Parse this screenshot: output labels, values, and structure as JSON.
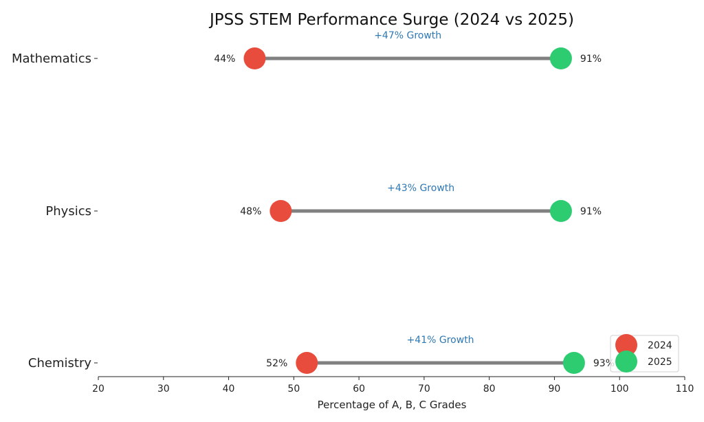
{
  "chart_data": {
    "type": "dumbbell",
    "title": "JPSS STEM Performance Surge (2024 vs 2025)",
    "xlabel": "Percentage of A, B, C Grades",
    "ylabel": "",
    "xlim": [
      20,
      110
    ],
    "xticks": [
      20,
      30,
      40,
      50,
      60,
      70,
      80,
      90,
      100,
      110
    ],
    "grid": false,
    "categories": [
      "Mathematics",
      "Physics",
      "Chemistry"
    ],
    "series": [
      {
        "name": "2024",
        "color": "#e74c3c",
        "values": [
          44,
          48,
          52
        ]
      },
      {
        "name": "2025",
        "color": "#2ecc71",
        "values": [
          91,
          91,
          93
        ]
      }
    ],
    "value_labels_2024": [
      "44%",
      "48%",
      "52%"
    ],
    "value_labels_2025": [
      "91%",
      "91%",
      "93%"
    ],
    "annotations": [
      "+47% Growth",
      "+43% Growth",
      "+41% Growth"
    ],
    "annotation_color": "#2e78b4",
    "connector_color": "#808080",
    "legend": {
      "placement": "lower-right",
      "entries": [
        "2024",
        "2025"
      ]
    }
  }
}
